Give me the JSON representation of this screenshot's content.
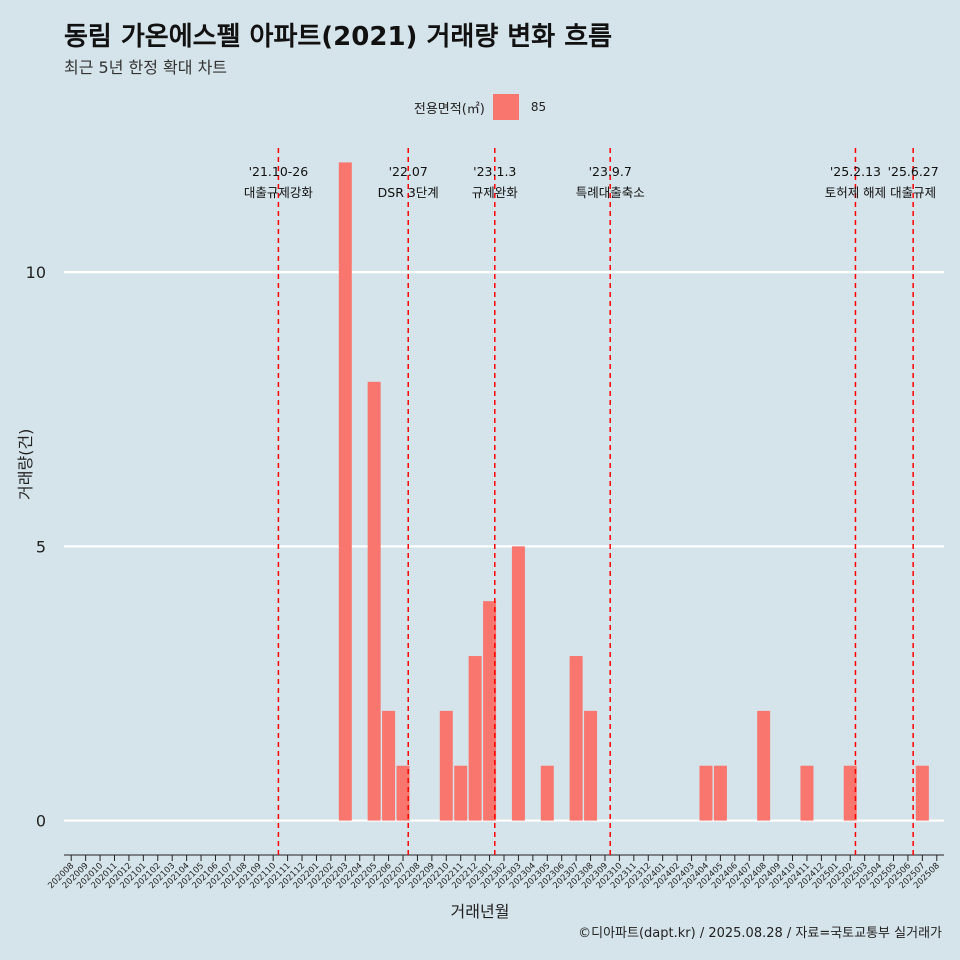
{
  "title": "동림 가온에스펠 아파트(2021) 거래량 변화 흐름",
  "subtitle": "최근 5년 한정 확대 차트",
  "caption": "©디아파트(dapt.kr) / 2025.08.28 / 자료=국토교통부 실거래가",
  "colors": {
    "bar": "#f8766d",
    "background": "#d5e3ea",
    "event_line": "#ff0000",
    "grid": "#ffffff"
  },
  "chart_data": {
    "type": "bar",
    "xlabel": "거래년월",
    "ylabel": "거래량(건)",
    "legend_title": "전용면적(㎡)",
    "legend_position": "top",
    "grid": true,
    "ylim": [
      -0.5,
      12.5
    ],
    "yticks": [
      0,
      5,
      10
    ],
    "categories": [
      "202008",
      "202009",
      "202010",
      "202011",
      "202012",
      "202101",
      "202102",
      "202103",
      "202104",
      "202105",
      "202106",
      "202107",
      "202108",
      "202109",
      "202110",
      "202111",
      "202112",
      "202201",
      "202202",
      "202203",
      "202204",
      "202205",
      "202206",
      "202207",
      "202208",
      "202209",
      "202210",
      "202211",
      "202212",
      "202301",
      "202302",
      "202303",
      "202304",
      "202305",
      "202306",
      "202307",
      "202308",
      "202309",
      "202310",
      "202311",
      "202312",
      "202401",
      "202402",
      "202403",
      "202404",
      "202405",
      "202406",
      "202407",
      "202408",
      "202409",
      "202410",
      "202411",
      "202412",
      "202501",
      "202502",
      "202503",
      "202504",
      "202505",
      "202506",
      "202507",
      "202508"
    ],
    "series": [
      {
        "name": "85",
        "values": [
          0,
          0,
          0,
          0,
          0,
          0,
          0,
          0,
          0,
          0,
          0,
          0,
          0,
          0,
          0,
          0,
          0,
          0,
          0,
          12,
          0,
          8,
          2,
          1,
          0,
          0,
          2,
          1,
          3,
          4,
          0,
          5,
          0,
          1,
          0,
          3,
          2,
          0,
          0,
          0,
          0,
          0,
          0,
          0,
          1,
          1,
          0,
          0,
          2,
          0,
          0,
          1,
          0,
          0,
          1,
          0,
          0,
          0,
          0,
          1,
          0
        ]
      }
    ],
    "events": [
      {
        "date": "'21.10-26",
        "label": "대출규제강화",
        "x_category": "202110"
      },
      {
        "date": "'22.07",
        "label": "DSR 3단계",
        "x_category": "202207"
      },
      {
        "date": "'23.1.3",
        "label": "규제완화",
        "x_category": "202301"
      },
      {
        "date": "'23.9.7",
        "label": "특례대출축소",
        "x_category": "202309"
      },
      {
        "date": "'25.2.13",
        "label": "토허제 해제",
        "x_category": "202502"
      },
      {
        "date": "'25.6.27",
        "label": "대출규제",
        "x_category": "202506"
      }
    ]
  }
}
